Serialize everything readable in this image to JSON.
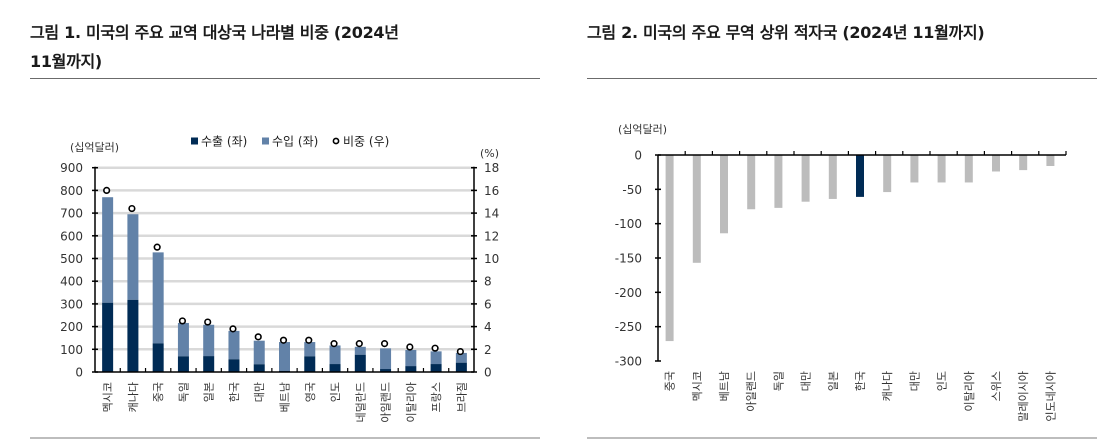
{
  "figures": [
    {
      "title": "그림 1. 미국의 주요 교역 대상국 나라별 비중 (2024년 11월까지)",
      "title_line1": "그림 1. 미국의 주요 교역 대상국 나라별 비중 (2024년",
      "title_line2": "11월까지)"
    },
    {
      "title": "그림 2. 미국의 주요 무역 상위 적자국 (2024년 11월까지)"
    }
  ],
  "chart_data": [
    {
      "type": "bar",
      "stacked": true,
      "title": "그림 1. 미국의 주요 교역 대상국 나라별 비중 (2024년 11월까지)",
      "ylabel_left": "(십억달러)",
      "ylabel_right": "(%)",
      "ylim_left": [
        0,
        900
      ],
      "yticks_left": [
        0,
        100,
        200,
        300,
        400,
        500,
        600,
        700,
        800,
        900
      ],
      "ylim_right": [
        0,
        18
      ],
      "yticks_right": [
        0,
        2,
        4,
        6,
        8,
        10,
        12,
        14,
        16,
        18
      ],
      "grid": true,
      "legend_position": "top",
      "legend": [
        {
          "name": "수출 (좌)",
          "color": "#002b55",
          "marker": "square"
        },
        {
          "name": "수입 (좌)",
          "color": "#6282a8",
          "marker": "square"
        },
        {
          "name": "비중 (우)",
          "color": "#000000",
          "marker": "circle"
        }
      ],
      "categories": [
        "멕시코",
        "캐나다",
        "중국",
        "독일",
        "일본",
        "한국",
        "대만",
        "베트남",
        "영국",
        "인도",
        "네덜란드",
        "아일랜드",
        "이탈리아",
        "프랑스",
        "브라질"
      ],
      "series": [
        {
          "name": "수출 (좌)",
          "axis": "left",
          "type": "bar",
          "color": "#002b55",
          "values": [
            305,
            318,
            126,
            69,
            70,
            56,
            34,
            5,
            69,
            35,
            76,
            13,
            26,
            35,
            41
          ]
        },
        {
          "name": "수입 (좌)",
          "axis": "left",
          "type": "bar",
          "color": "#6282a8",
          "values": [
            465,
            377,
            401,
            147,
            138,
            125,
            104,
            127,
            63,
            82,
            35,
            91,
            71,
            56,
            43
          ]
        },
        {
          "name": "비중 (우)",
          "axis": "right",
          "type": "scatter",
          "color": "#000000",
          "values": [
            16.0,
            14.4,
            11.0,
            4.5,
            4.4,
            3.8,
            3.1,
            2.8,
            2.8,
            2.5,
            2.5,
            2.5,
            2.2,
            2.1,
            1.8
          ]
        }
      ]
    },
    {
      "type": "bar",
      "title": "그림 2. 미국의 주요 무역 상위 적자국 (2024년 11월까지)",
      "ylabel": "(십억달러)",
      "ylim": [
        -300,
        0
      ],
      "yticks": [
        0,
        -50,
        -100,
        -150,
        -200,
        -250,
        -300
      ],
      "grid": false,
      "categories": [
        "중국",
        "멕시코",
        "베트남",
        "아일랜드",
        "독일",
        "대만",
        "일본",
        "한국",
        "캐나다",
        "대만",
        "인도",
        "이탈리아",
        "스위스",
        "말레이시아",
        "인도네시아"
      ],
      "values": [
        -271,
        -157,
        -114,
        -79,
        -77,
        -68,
        -64,
        -61,
        -54,
        -40,
        -40,
        -40,
        -24,
        -22,
        -16
      ],
      "colors": {
        "default": "#bcbcbc",
        "highlight": "#002b55"
      },
      "highlight_index": 7
    }
  ]
}
